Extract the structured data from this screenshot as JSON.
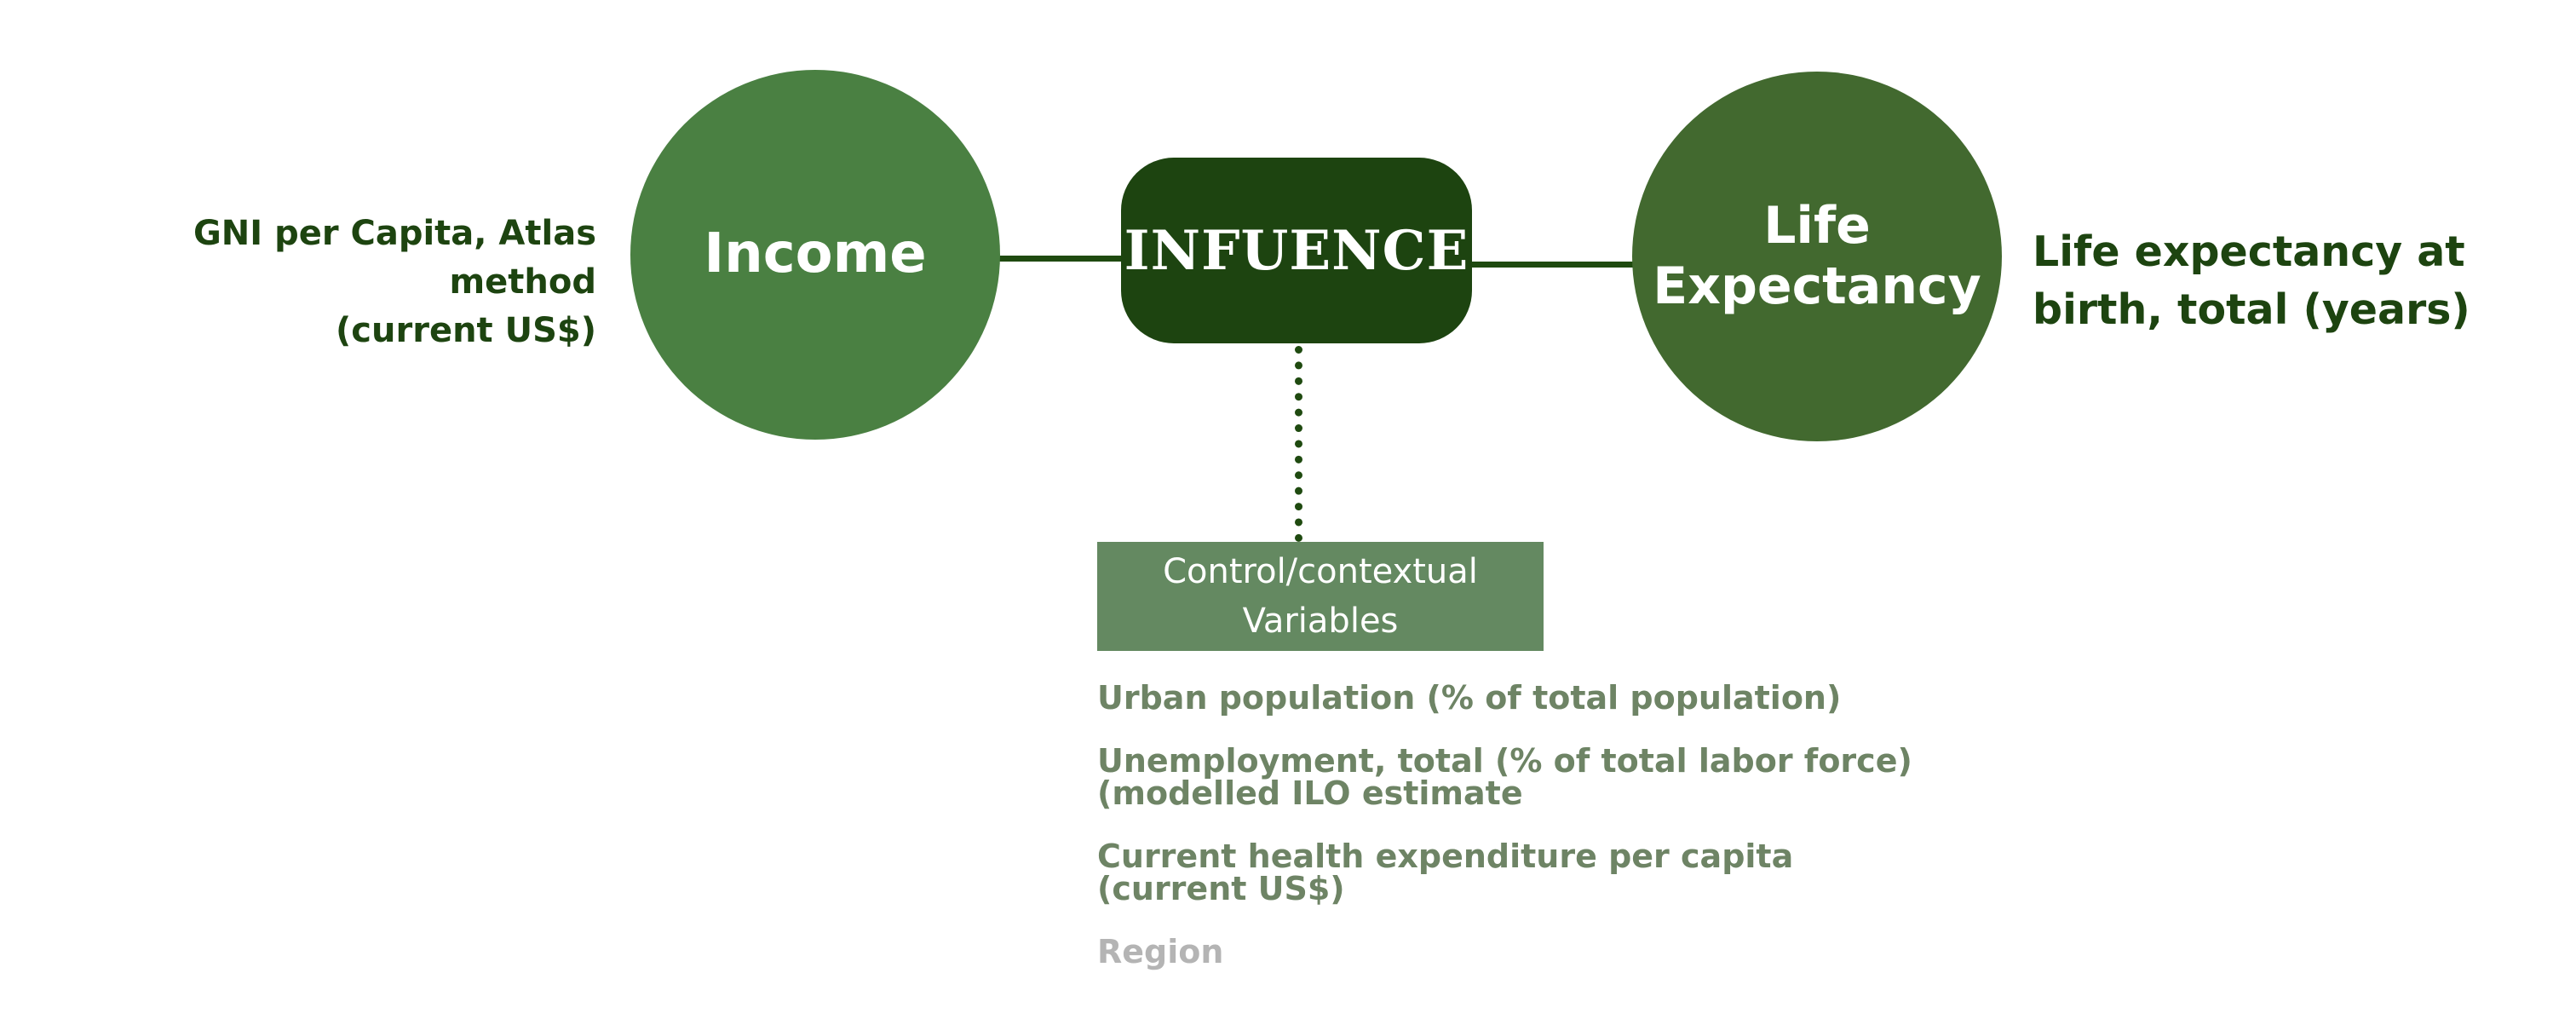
{
  "diagram": {
    "nodes": {
      "income": {
        "label": "Income"
      },
      "influence": {
        "label": "INFUENCE"
      },
      "life_expectancy": {
        "label_line1": "Life",
        "label_line2": "Expectancy"
      },
      "control": {
        "label": "Control/contextual Variables"
      }
    },
    "labels": {
      "income_indicator_line1": "GNI per Capita, Atlas method",
      "income_indicator_line2": "(current US$)",
      "life_indicator_line1": "Life expectancy at",
      "life_indicator_line2": "birth, total (years)"
    },
    "control_variables": [
      {
        "text": "Urban population (% of total population)",
        "muted": false
      },
      {
        "text": "Unemployment, total (% of total labor force) (modelled ILO estimate",
        "muted": false
      },
      {
        "text": "Current health expenditure per capita (current US$)",
        "muted": false
      },
      {
        "text": "Region",
        "muted": true
      }
    ]
  },
  "colors": {
    "income_circle": "#4a8042",
    "life_circle": "#42692f",
    "influence_box": "#1d4410",
    "control_box": "#648961",
    "connector": "#1f4a10",
    "indicator_text": "#1d4410",
    "variable_text": "#6e8465",
    "muted_text": "#b4b4b4"
  }
}
